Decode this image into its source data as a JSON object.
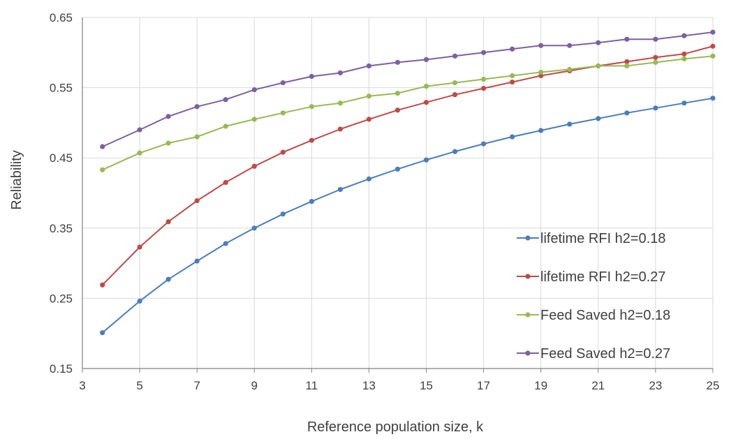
{
  "chart_data": {
    "type": "line",
    "title": "",
    "xlabel": "Reference population size, k",
    "ylabel": "Reliability",
    "xlim": [
      3,
      25
    ],
    "ylim": [
      0.15,
      0.65
    ],
    "xticks": [
      "3",
      "5",
      "7",
      "9",
      "11",
      "13",
      "15",
      "17",
      "19",
      "21",
      "23",
      "25"
    ],
    "yticks": [
      "0.15",
      "0.25",
      "0.35",
      "0.45",
      "0.55",
      "0.65"
    ],
    "grid": true,
    "legend_position": "bottom-right",
    "x": [
      3.7,
      5,
      6,
      7,
      8,
      9,
      10,
      11,
      12,
      13,
      14,
      15,
      16,
      17,
      18,
      19,
      20,
      21,
      22,
      23,
      24,
      25
    ],
    "series": [
      {
        "name": "lifetime RFI h2=0.18",
        "color": "#4a7ebb",
        "values": [
          0.201,
          0.246,
          0.277,
          0.303,
          0.328,
          0.35,
          0.37,
          0.388,
          0.405,
          0.42,
          0.434,
          0.447,
          0.459,
          0.47,
          0.48,
          0.489,
          0.498,
          0.506,
          0.514,
          0.521,
          0.528,
          0.535
        ]
      },
      {
        "name": "lifetime RFI h2=0.27",
        "color": "#be4b48",
        "values": [
          0.269,
          0.323,
          0.359,
          0.389,
          0.415,
          0.438,
          0.458,
          0.475,
          0.491,
          0.505,
          0.518,
          0.529,
          0.54,
          0.549,
          0.558,
          0.567,
          0.574,
          0.581,
          0.587,
          0.593,
          0.598,
          0.609
        ]
      },
      {
        "name": "Feed Saved h2=0.18",
        "color": "#98b954",
        "values": [
          0.433,
          0.457,
          0.471,
          0.48,
          0.495,
          0.505,
          0.514,
          0.523,
          0.528,
          0.538,
          0.542,
          0.552,
          0.557,
          0.562,
          0.567,
          0.572,
          0.576,
          0.581,
          0.581,
          0.586,
          0.591,
          0.595
        ]
      },
      {
        "name": "Feed Saved h2=0.27",
        "color": "#7d60a0",
        "values": [
          0.466,
          0.49,
          0.509,
          0.523,
          0.533,
          0.547,
          0.557,
          0.566,
          0.571,
          0.581,
          0.586,
          0.59,
          0.595,
          0.6,
          0.605,
          0.61,
          0.61,
          0.614,
          0.619,
          0.619,
          0.624,
          0.629
        ]
      }
    ]
  }
}
